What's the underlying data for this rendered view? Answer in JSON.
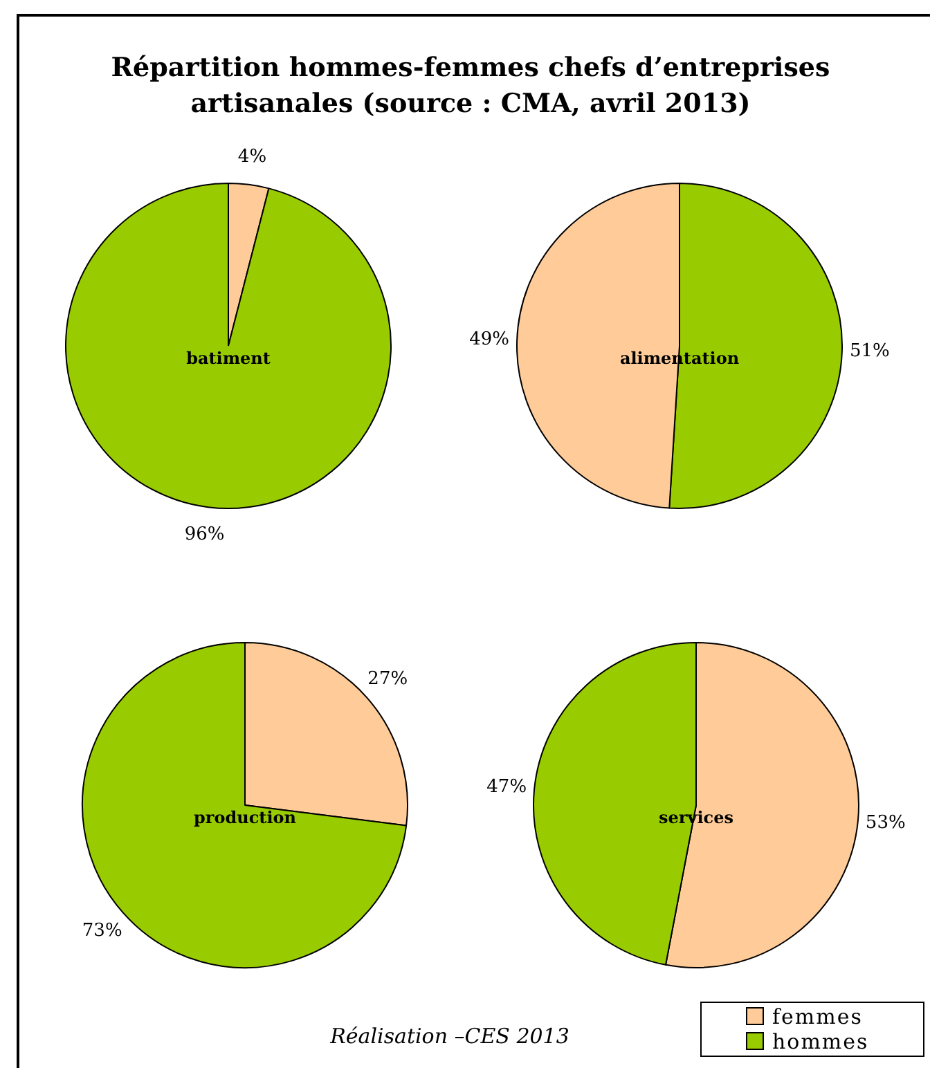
{
  "chart_data": [
    {
      "type": "other",
      "title": "Répartition hommes-femmes chefs d’entreprises artisanales (source : CMA, avril 2013)",
      "annotations": [
        "Réalisation –CES 2013"
      ]
    },
    {
      "type": "pie",
      "title": "batiment",
      "categories": [
        null,
        null
      ],
      "values": [
        4,
        96
      ],
      "colors": [
        "#ffcc99",
        "#99cc00"
      ],
      "value_labels": [
        "4%",
        "96%"
      ]
    },
    {
      "type": "pie",
      "title": "alimentation",
      "categories": [
        null,
        null
      ],
      "values": [
        51,
        49
      ],
      "colors": [
        "#99cc00",
        "#ffcc99"
      ],
      "value_labels": [
        "51%",
        "49%"
      ]
    },
    {
      "type": "pie",
      "title": "production",
      "categories": [
        null,
        null
      ],
      "values": [
        27,
        73
      ],
      "colors": [
        "#ffcc99",
        "#99cc00"
      ],
      "value_labels": [
        "27%",
        "73%"
      ]
    },
    {
      "type": "pie",
      "title": "services",
      "categories": [
        "femmes",
        "hommes"
      ],
      "values": [
        53,
        47
      ],
      "colors": [
        "#ffcc99",
        "#99cc00"
      ],
      "value_labels": [
        "53%",
        "47%"
      ],
      "legend": "bottom right"
    }
  ]
}
